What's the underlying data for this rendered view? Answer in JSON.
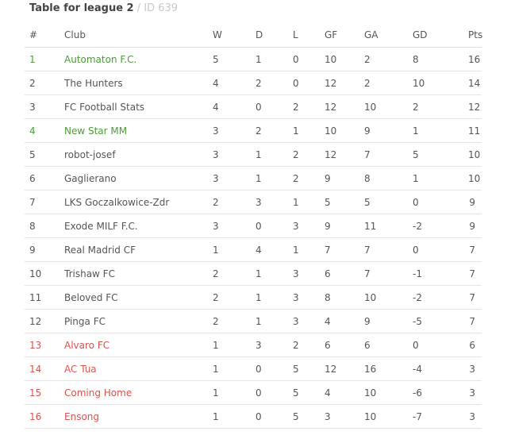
{
  "title": {
    "main": "Table for league 2",
    "separator": "/",
    "id_text": "ID 639"
  },
  "colors": {
    "promotion": "#4e9a3a",
    "relegation": "#d9534f",
    "points": "#4e9a3a"
  },
  "columns": {
    "pos": "#",
    "club": "Club",
    "w": "W",
    "d": "D",
    "l": "L",
    "gf": "GF",
    "ga": "GA",
    "gd": "GD",
    "pts": "Pts"
  },
  "rows": [
    {
      "pos": "1",
      "club": "Automaton F.C.",
      "w": "5",
      "d": "1",
      "l": "0",
      "gf": "10",
      "ga": "2",
      "gd": "8",
      "pts": "16",
      "zone": "promo"
    },
    {
      "pos": "2",
      "club": "The Hunters",
      "w": "4",
      "d": "2",
      "l": "0",
      "gf": "12",
      "ga": "2",
      "gd": "10",
      "pts": "14",
      "zone": ""
    },
    {
      "pos": "3",
      "club": "FC Football Stats",
      "w": "4",
      "d": "0",
      "l": "2",
      "gf": "12",
      "ga": "10",
      "gd": "2",
      "pts": "12",
      "zone": ""
    },
    {
      "pos": "4",
      "club": "New Star MM",
      "w": "3",
      "d": "2",
      "l": "1",
      "gf": "10",
      "ga": "9",
      "gd": "1",
      "pts": "11",
      "zone": "promo"
    },
    {
      "pos": "5",
      "club": "robot-josef",
      "w": "3",
      "d": "1",
      "l": "2",
      "gf": "12",
      "ga": "7",
      "gd": "5",
      "pts": "10",
      "zone": ""
    },
    {
      "pos": "6",
      "club": "Gaglierano",
      "w": "3",
      "d": "1",
      "l": "2",
      "gf": "9",
      "ga": "8",
      "gd": "1",
      "pts": "10",
      "zone": ""
    },
    {
      "pos": "7",
      "club": "LKS Goczalkowice-Zdr",
      "w": "2",
      "d": "3",
      "l": "1",
      "gf": "5",
      "ga": "5",
      "gd": "0",
      "pts": "9",
      "zone": ""
    },
    {
      "pos": "8",
      "club": "Exode MILF F.C.",
      "w": "3",
      "d": "0",
      "l": "3",
      "gf": "9",
      "ga": "11",
      "gd": "-2",
      "pts": "9",
      "zone": ""
    },
    {
      "pos": "9",
      "club": "Real Madrid CF",
      "w": "1",
      "d": "4",
      "l": "1",
      "gf": "7",
      "ga": "7",
      "gd": "0",
      "pts": "7",
      "zone": ""
    },
    {
      "pos": "10",
      "club": "Trishaw FC",
      "w": "2",
      "d": "1",
      "l": "3",
      "gf": "6",
      "ga": "7",
      "gd": "-1",
      "pts": "7",
      "zone": ""
    },
    {
      "pos": "11",
      "club": "Beloved FC",
      "w": "2",
      "d": "1",
      "l": "3",
      "gf": "8",
      "ga": "10",
      "gd": "-2",
      "pts": "7",
      "zone": ""
    },
    {
      "pos": "12",
      "club": "Pinga FC",
      "w": "2",
      "d": "1",
      "l": "3",
      "gf": "4",
      "ga": "9",
      "gd": "-5",
      "pts": "7",
      "zone": ""
    },
    {
      "pos": "13",
      "club": "Alvaro FC",
      "w": "1",
      "d": "3",
      "l": "2",
      "gf": "6",
      "ga": "6",
      "gd": "0",
      "pts": "6",
      "zone": "releg"
    },
    {
      "pos": "14",
      "club": "AC Tua",
      "w": "1",
      "d": "0",
      "l": "5",
      "gf": "12",
      "ga": "16",
      "gd": "-4",
      "pts": "3",
      "zone": "releg"
    },
    {
      "pos": "15",
      "club": "Coming Home",
      "w": "1",
      "d": "0",
      "l": "5",
      "gf": "4",
      "ga": "10",
      "gd": "-6",
      "pts": "3",
      "zone": "releg"
    },
    {
      "pos": "16",
      "club": "Ensong",
      "w": "1",
      "d": "0",
      "l": "5",
      "gf": "3",
      "ga": "10",
      "gd": "-7",
      "pts": "3",
      "zone": "releg"
    }
  ]
}
